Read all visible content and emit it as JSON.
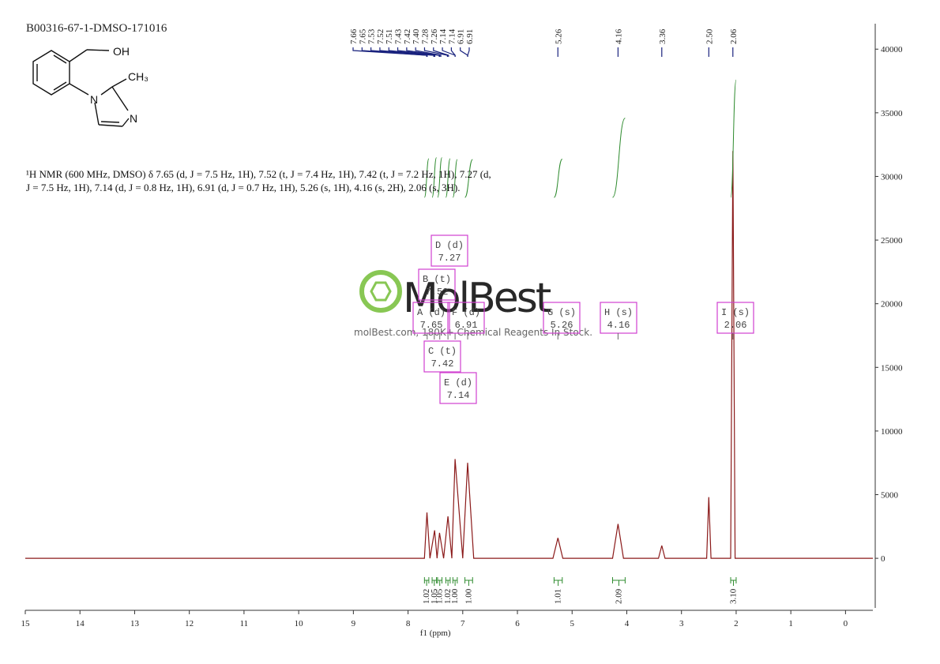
{
  "chart_data": {
    "type": "line",
    "title": "B00316-67-1-DMSO-171016",
    "description": "¹H NMR (600 MHz, DMSO) δ 7.65 (d, J = 7.5 Hz, 1H), 7.52 (t, J = 7.4 Hz, 1H), 7.42 (t, J = 7.2 Hz, 1H), 7.27 (d, J = 7.5 Hz, 1H), 7.14 (d, J = 0.8 Hz, 1H), 6.91 (d, J = 0.7 Hz, 1H), 5.26 (s, 1H), 4.16 (s, 2H), 2.06 (s, 3H).",
    "xlabel": "f1 (ppm)",
    "xlim": [
      15,
      -0.5
    ],
    "xticks": [
      15,
      14,
      13,
      12,
      11,
      10,
      9,
      8,
      7,
      6,
      5,
      4,
      3,
      2,
      1,
      0
    ],
    "ylim": [
      -3900,
      42000
    ],
    "yticks": [
      0,
      5000,
      10000,
      15000,
      20000,
      25000,
      30000,
      35000,
      40000
    ],
    "color": "#8b1a1a",
    "x": [
      15,
      7.7,
      7.655,
      7.6,
      7.515,
      7.47,
      7.425,
      7.35,
      7.27,
      7.2,
      7.14,
      7.0,
      6.91,
      6.8,
      5.35,
      5.26,
      5.17,
      4.26,
      4.16,
      4.06,
      3.42,
      3.36,
      3.3,
      2.54,
      2.5,
      2.46,
      2.1,
      2.06,
      2.02,
      -0.5
    ],
    "values": [
      0,
      0,
      3600,
      0,
      2200,
      0,
      2000,
      0,
      3300,
      0,
      7800,
      0,
      7500,
      0,
      0,
      1600,
      0,
      0,
      2700,
      0,
      0,
      1000,
      0,
      0,
      4800,
      0,
      0,
      32000,
      0,
      0
    ],
    "peak_labels": [
      7.66,
      7.65,
      7.53,
      7.52,
      7.51,
      7.43,
      7.42,
      {
        "value": 7.4,
        "label": "7.40"
      },
      7.28,
      7.26,
      7.14,
      7.14,
      6.91,
      6.91,
      5.26,
      4.16,
      3.36,
      {
        "value": 2.5,
        "label": "2.50"
      },
      2.06
    ],
    "peak_color": "#1a237e",
    "integrals": {
      "from": [
        7.7,
        7.56,
        7.46,
        7.31,
        7.18,
        6.96,
        5.33,
        4.26,
        2.1
      ],
      "to": [
        7.62,
        7.48,
        7.38,
        7.23,
        7.1,
        6.82,
        5.18,
        4.03,
        2.0
      ],
      "values": [
        1.02,
        1.05,
        1.05,
        1.02,
        1,
        1,
        1.01,
        2.09,
        3.1
      ],
      "value_labels": [
        "1.02",
        "1.05",
        "1.05",
        "1.02",
        "1.00",
        "1.00",
        "1.01",
        "2.09",
        "3.10"
      ],
      "color": "#2e8b2e"
    },
    "multiplets": {
      "labels": [
        "A (d)",
        "B (t)",
        "C (t)",
        "D (d)",
        "E (d)",
        "F (d)",
        "G (s)",
        "H (s)",
        "I (s)"
      ],
      "shifts": [
        7.65,
        7.52,
        7.42,
        7.27,
        7.14,
        6.91,
        5.26,
        4.16,
        2.06
      ],
      "color": "#d040d0"
    }
  },
  "structure": {
    "labels": [
      "OH",
      "CH₃",
      "N",
      "N"
    ]
  },
  "watermark": {
    "logo": "MolBest",
    "tagline": "molBest.com, 180K+ Chemical Reagents In Stock."
  }
}
